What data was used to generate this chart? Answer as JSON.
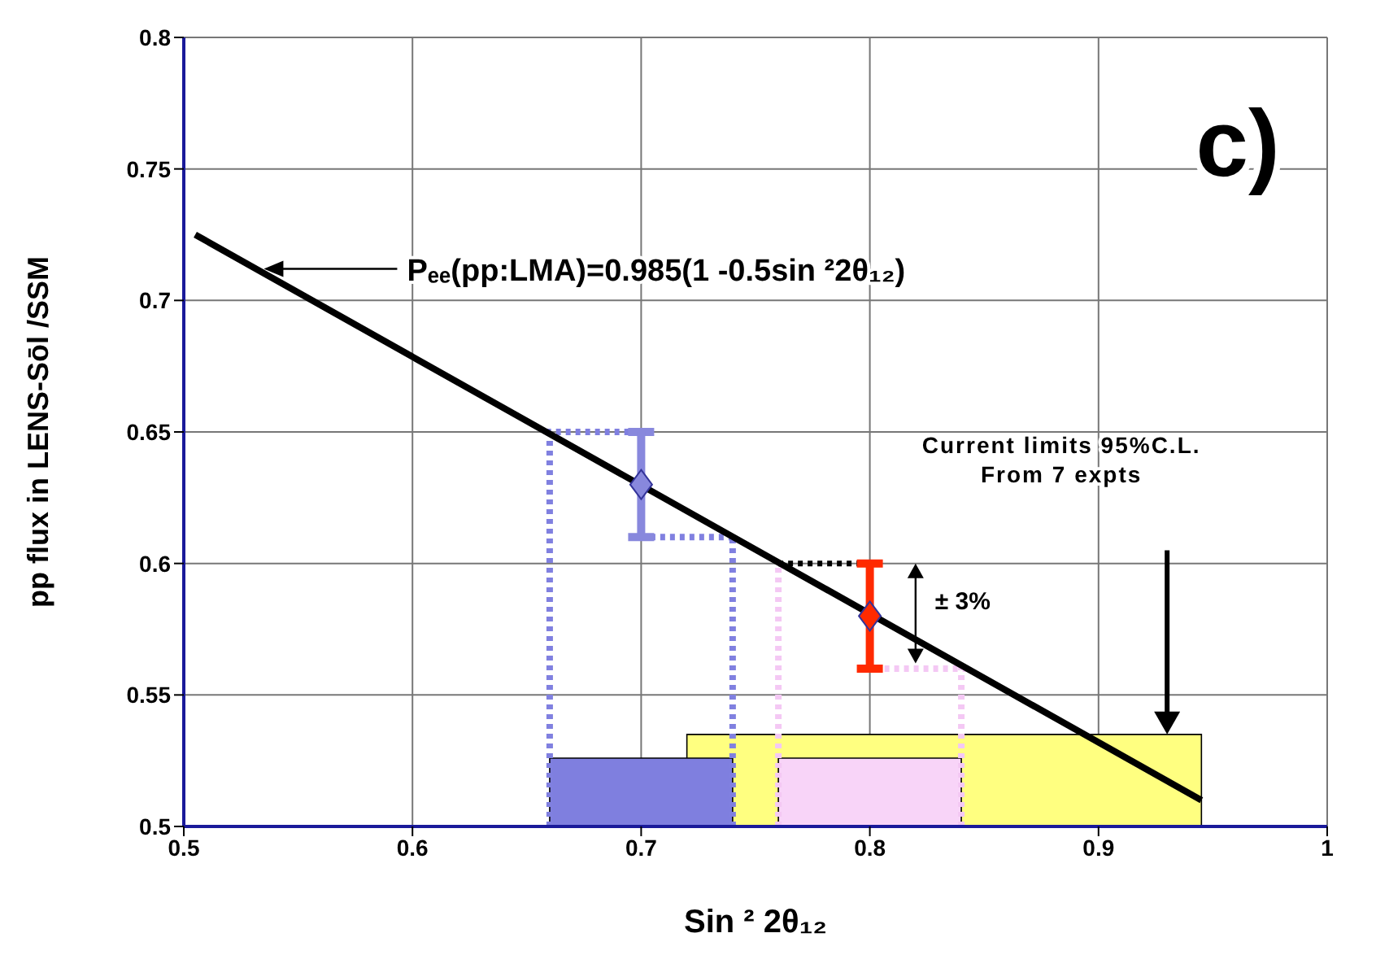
{
  "chart_data": {
    "type": "scatter",
    "xlabel": "Sin ² 2θ₁₂",
    "ylabel": "pp flux in LENS-Sōl /SSM",
    "xlim": [
      0.5,
      1
    ],
    "xticks": [
      0.5,
      0.6,
      0.7,
      0.8,
      0.9,
      1
    ],
    "ylim": [
      0.5,
      0.8
    ],
    "yticks": [
      0.5,
      0.55,
      0.6,
      0.65,
      0.7,
      0.75,
      0.8
    ],
    "grid": true,
    "marker": "diamond",
    "series": [
      {
        "type": "line",
        "x": [
          0.505,
          0.945
        ],
        "values": [
          0.725,
          0.51
        ],
        "color": "#000000",
        "marker": "none"
      },
      {
        "type": "line",
        "x": [
          0.76,
          0.8
        ],
        "values": [
          0.6,
          0.6
        ],
        "color": "#000000",
        "marker": "none",
        "line_style": "dotted"
      },
      {
        "x": [
          0.7
        ],
        "values": [
          0.63
        ],
        "errors": [
          0.02
        ],
        "color": "#8888dd"
      },
      {
        "x": [
          0.8
        ],
        "values": [
          0.58
        ],
        "errors": [
          0.02
        ],
        "color": "#ff2a00"
      }
    ],
    "bands": [
      {
        "axis": "x",
        "from": 0.72,
        "to": 0.945,
        "color": "#ffff80"
      },
      {
        "axis": "x",
        "from": 0.66,
        "to": 0.74,
        "color": "#7f7fdf"
      },
      {
        "axis": "x",
        "from": 0.76,
        "to": 0.84,
        "color": "#f8d4f8"
      }
    ],
    "ref_lines": [
      {
        "axis": "x",
        "value": 0.66,
        "color": "#8080e0",
        "line_style": "dotted"
      },
      {
        "axis": "x",
        "value": 0.74,
        "color": "#8080e0",
        "line_style": "dotted"
      },
      {
        "axis": "x",
        "value": 0.76,
        "color": "#f4c8f4",
        "line_style": "dotted"
      },
      {
        "axis": "x",
        "value": 0.84,
        "color": "#f4c8f4",
        "line_style": "dotted"
      },
      {
        "axis": "y",
        "value": 0.65,
        "color": "#8080e0",
        "line_style": "dotted"
      },
      {
        "axis": "y",
        "value": 0.61,
        "color": "#8080e0",
        "line_style": "dotted"
      },
      {
        "axis": "y",
        "value": 0.56,
        "color": "#f4c8f4",
        "line_style": "dotted"
      }
    ],
    "annotations": [
      "c)",
      "Pₑₑ(pp:LMA)=0.985(1   -0.5sin ²2θ₁₂)",
      "Current limits  95%C.L.\nFrom 7   expts",
      "± 3%"
    ]
  }
}
